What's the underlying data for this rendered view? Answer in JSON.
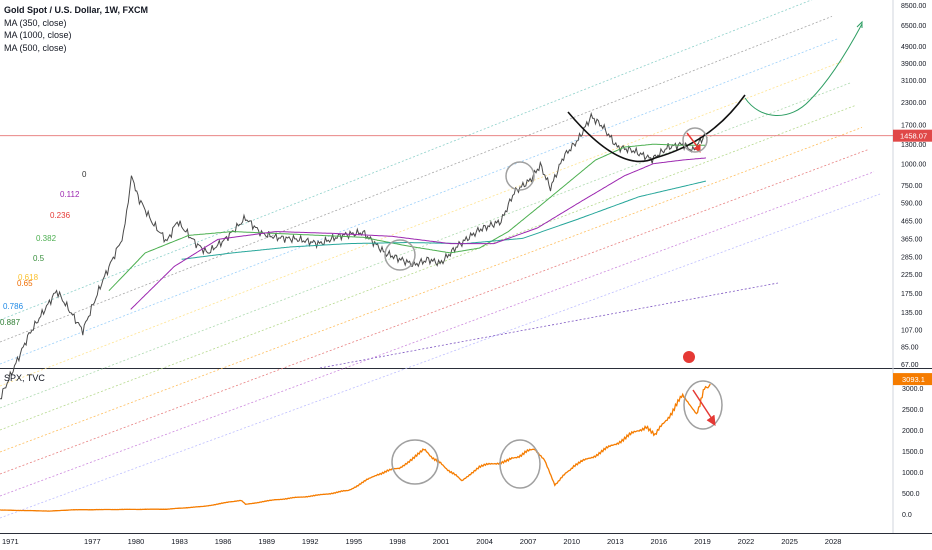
{
  "legend": {
    "symbol": "Gold Spot / U.S. Dollar, 1W, FXCM",
    "ma1": "MA (350, close)",
    "ma2": "MA (1000, close)",
    "ma3": "MA (500, close)"
  },
  "lower_legend": "SPX, TVC",
  "colors": {
    "gold_price": "#4a4a4a",
    "spx": "#f57c00",
    "ma350": "#4caf50",
    "ma500": "#9c27b0",
    "ma1000": "#26a69a",
    "price_line": "#e57373",
    "bowl": "#111111",
    "projection": "#2e9e63",
    "arrow": "#e53935",
    "circle": "#a0a0a0",
    "price_tag": "#e04848",
    "spx_tag": "#f57c00"
  },
  "chart_data": [
    {
      "type": "line",
      "title": "Gold Spot / U.S. Dollar, 1W, FXCM",
      "yscale": "log",
      "yticks": [
        8500.0,
        6500.0,
        4900.0,
        3900.0,
        3100.0,
        2300.0,
        1700.0,
        1300.0,
        1000.0,
        750.0,
        590.0,
        465.0,
        365.0,
        285.0,
        225.0,
        175.0,
        135.0,
        107.0,
        85.0,
        67.0
      ],
      "current_price": "1458.07",
      "fib_labels": [
        "0",
        "0.112",
        "0.236",
        "0.382",
        "0.5",
        "0.618",
        "0.65",
        "0.786",
        "0.887"
      ],
      "series": [
        {
          "name": "Gold Spot / U.S. Dollar",
          "x": [
            1971.0,
            1973.0,
            1974.9,
            1976.7,
            1978.0,
            1979.5,
            1980.05,
            1980.5,
            1981.5,
            1982.5,
            1983.2,
            1984.5,
            1985.3,
            1986.5,
            1987.9,
            1989.0,
            1990.0,
            1991.5,
            1993.0,
            1994.5,
            1996.0,
            1997.5,
            1999.5,
            2000.5,
            2001.3,
            2002.5,
            2004.0,
            2005.5,
            2006.4,
            2007.5,
            2008.2,
            2008.9,
            2009.8,
            2010.8,
            2011.7,
            2012.5,
            2013.5,
            2014.5,
            2015.9,
            2017.0,
            2018.0,
            2018.7,
            2019.6
          ],
          "values": [
            42,
            100,
            180,
            105,
            200,
            380,
            850,
            640,
            450,
            350,
            460,
            340,
            300,
            360,
            480,
            390,
            370,
            360,
            340,
            380,
            395,
            300,
            255,
            275,
            260,
            330,
            410,
            460,
            680,
            800,
            980,
            720,
            1100,
            1380,
            1890,
            1650,
            1250,
            1200,
            1060,
            1250,
            1300,
            1190,
            1500
          ]
        },
        {
          "name": "MA (350, close)",
          "x": [
            1978.5,
            1981.0,
            1984.0,
            1987.0,
            1990.0,
            1993.0,
            1996.0,
            1999.0,
            2002.0,
            2004.0,
            2006.0,
            2008.0,
            2010.0,
            2012.0,
            2014.0,
            2016.0,
            2018.0,
            2019.6
          ],
          "values": [
            180,
            300,
            380,
            400,
            390,
            380,
            370,
            330,
            300,
            320,
            400,
            550,
            760,
            1050,
            1250,
            1300,
            1280,
            1280
          ]
        },
        {
          "name": "MA (1000, close)",
          "x": [
            1983.5,
            1987.0,
            1991.0,
            1995.0,
            1999.0,
            2003.0,
            2007.0,
            2011.0,
            2015.0,
            2019.6
          ],
          "values": [
            275,
            300,
            325,
            340,
            345,
            340,
            365,
            480,
            640,
            790
          ]
        },
        {
          "name": "MA (500, close)",
          "x": [
            1980.0,
            1983.0,
            1986.0,
            1990.0,
            1994.0,
            1998.0,
            2002.0,
            2005.0,
            2008.0,
            2011.0,
            2014.0,
            2016.0,
            2018.0,
            2019.6
          ],
          "values": [
            140,
            250,
            360,
            400,
            390,
            375,
            340,
            340,
            420,
            600,
            850,
            1000,
            1050,
            1080
          ]
        }
      ]
    },
    {
      "type": "line",
      "title": "SPX, TVC",
      "yticks": [
        3000.0,
        2500.0,
        2000.0,
        1500.0,
        1000.0,
        500.0,
        0.0
      ],
      "current_price": "3093.1",
      "xticks": [
        "1971",
        "1977",
        "1980",
        "1983",
        "1986",
        "1989",
        "1992",
        "1995",
        "1998",
        "2001",
        "2004",
        "2007",
        "2010",
        "2013",
        "2016",
        "2019",
        "2022",
        "2025",
        "2028"
      ],
      "series": [
        {
          "name": "SPX",
          "x": [
            1971.0,
            1974.5,
            1976.0,
            1980.0,
            1982.5,
            1985.0,
            1987.6,
            1987.9,
            1990.0,
            1993.0,
            1995.0,
            1997.0,
            1998.5,
            2000.2,
            2001.5,
            2002.8,
            2004.0,
            2006.0,
            2007.8,
            2008.5,
            2009.2,
            2010.5,
            2012.0,
            2013.5,
            2015.5,
            2016.1,
            2018.0,
            2018.95,
            2019.5,
            2019.9
          ],
          "values": [
            95,
            70,
            100,
            110,
            115,
            180,
            330,
            230,
            340,
            450,
            560,
            950,
            1100,
            1520,
            1150,
            800,
            1130,
            1270,
            1560,
            1300,
            700,
            1150,
            1400,
            1700,
            2100,
            1870,
            2800,
            2400,
            2950,
            3093
          ]
        }
      ]
    }
  ]
}
